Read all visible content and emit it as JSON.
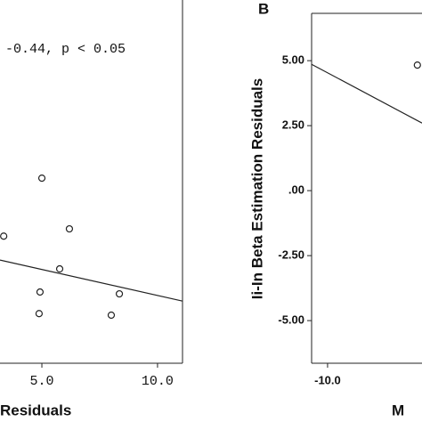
{
  "chart_data": [
    {
      "type": "scatter",
      "annotation": "-0.44, p < 0.05",
      "xlabel": "Residuals",
      "x": [
        5.0,
        3.35,
        6.19,
        5.77,
        4.92,
        8.35,
        4.88,
        8.0
      ],
      "y": [
        0.48,
        -1.75,
        -1.47,
        -3.01,
        -3.9,
        -3.97,
        -4.73,
        -4.79
      ],
      "fit": {
        "x": [
          3.19,
          11.08
        ],
        "y": [
          -2.67,
          -4.25
        ]
      },
      "xlim": [
        3.19,
        11.08
      ],
      "ylim": [
        -6.64,
        6.82
      ],
      "xticks": [
        {
          "value": 5,
          "label": "5.0"
        },
        {
          "value": 10,
          "label": "10.0"
        }
      ]
    },
    {
      "type": "scatter",
      "panel_label": "B",
      "xlabel": "M",
      "ylabel": "Ii-In Beta Estimation Residuals",
      "x": [
        -6.12
      ],
      "y": [
        4.83
      ],
      "fit": {
        "x": [
          -10.69,
          -5.92
        ],
        "y": [
          4.86,
          2.6
        ]
      },
      "xlim": [
        -10.69,
        -5.92
      ],
      "ylim": [
        -6.64,
        6.82
      ],
      "xticks": [
        {
          "value": -10,
          "label": "-10.0"
        }
      ],
      "yticks": [
        {
          "value": 5,
          "label": "5.00"
        },
        {
          "value": 2.5,
          "label": "2.50"
        },
        {
          "value": 0,
          "label": ".00"
        },
        {
          "value": -2.5,
          "label": "-2.50"
        },
        {
          "value": -5,
          "label": "-5.00"
        }
      ]
    }
  ]
}
